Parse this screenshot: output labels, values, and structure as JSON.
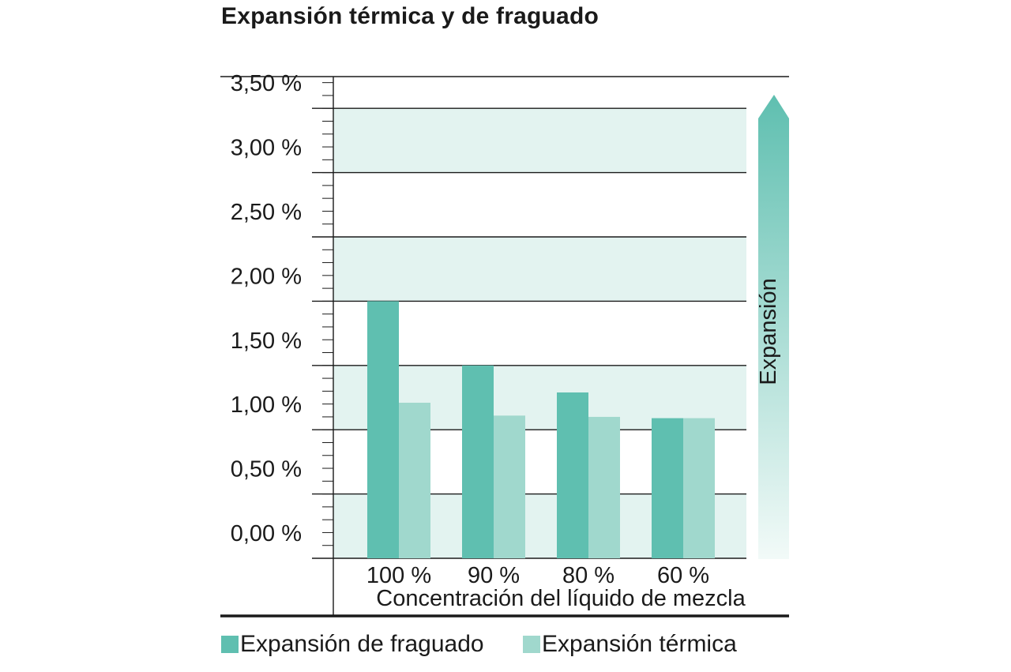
{
  "chart_data": {
    "type": "bar",
    "title": "Expansión térmica y de fraguado",
    "categories": [
      "100 %",
      "90 %",
      "80 %",
      "60 %"
    ],
    "series": [
      {
        "name": "Expansión de fraguado",
        "values": [
          2.0,
          1.5,
          1.29,
          1.09
        ],
        "color": "#5fbfb0"
      },
      {
        "name": "Expansión térmica",
        "values": [
          1.21,
          1.11,
          1.1,
          1.09
        ],
        "color": "#a0d8cd"
      }
    ],
    "xlabel": "Concentración del líquido de mezcla",
    "ylabel": "",
    "yticks": [
      "0,00 %",
      "0,50 %",
      "1,00 %",
      "1,50 %",
      "2,00 %",
      "2,50 %",
      "3,00 %",
      "3,50 %"
    ],
    "ylim": [
      0,
      3.75
    ],
    "grid": true,
    "band_color": "#e3f3f0",
    "arrow_label": "Expansión",
    "arrow_color": "#5fbfb0"
  }
}
